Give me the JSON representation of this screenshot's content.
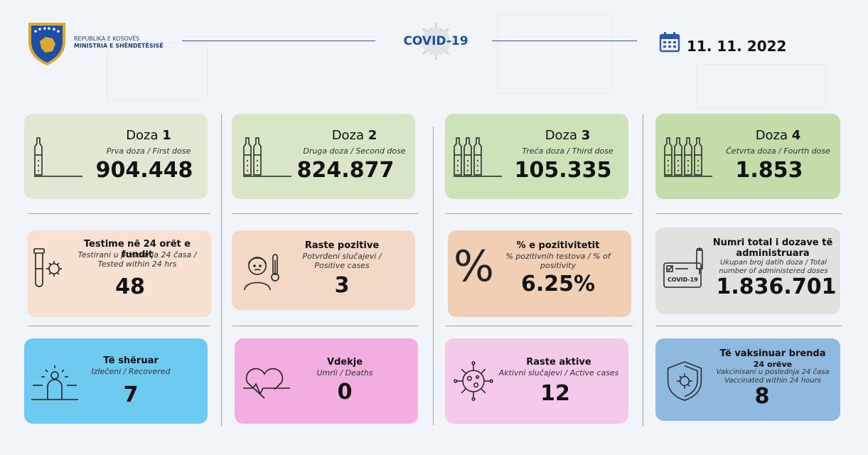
{
  "header": {
    "ministry_line1": "REPUBLIKA E KOSOVËS",
    "ministry_line2": "MINISTRIA E SHËNDETËSISË",
    "covid_title": "COVID-19",
    "date": "11. 11. 2022"
  },
  "doses": [
    {
      "label": "Doza",
      "number": "1",
      "sub": "Prva doza / First dose",
      "value": "904.448",
      "vials": 1,
      "color": "#dfe8d2"
    },
    {
      "label": "Doza",
      "number": "2",
      "sub": "Druga doza / Second dose",
      "value": "824.877",
      "vials": 2,
      "color": "#d6e6c7"
    },
    {
      "label": "Doza",
      "number": "3",
      "sub": "Treća doza / Third dose",
      "value": "105.335",
      "vials": 3,
      "color": "#cde2b8"
    },
    {
      "label": "Doza",
      "number": "4",
      "sub": "Četvrta doza / Fourth dose",
      "value": "1.853",
      "vials": 4,
      "color": "#c3dcaa"
    }
  ],
  "row2": [
    {
      "title": "Testime në 24 orët e fundit",
      "sub": "Testirani u poslednja 24 časa / Tested within 24 hrs",
      "value": "48",
      "color": "#f6e1d2"
    },
    {
      "title": "Raste pozitive",
      "sub": "Potvrđeni slučajevi / Positive cases",
      "value": "3",
      "color": "#f3d9c5"
    },
    {
      "title": "% e pozitivitetit",
      "sub": "% pozitivnih testova / % of positivity",
      "value": "6.25%",
      "color": "#f0cfb4"
    },
    {
      "title": "Numri total i dozave të administruara",
      "sub": "Ukupan broj datih doza / Total number of administered doses",
      "value": "1.836.701",
      "color": "#e3e1df"
    }
  ],
  "row2_icons": {
    "covid_card": "COVID-19",
    "percent": "%"
  },
  "row3": [
    {
      "title": "Të shëruar",
      "sub": "Izlečeni / Recovered",
      "value": "7",
      "color": "#6fcaf2"
    },
    {
      "title": "Vdekje",
      "sub": "Umrli / Deaths",
      "value": "0",
      "color": "#f3aee0"
    },
    {
      "title": "Raste aktive",
      "sub": "Aktivni slučajevi / Active cases",
      "value": "12",
      "color": "#f5c9ea"
    },
    {
      "title": "Të vaksinuar brenda",
      "title2": "24 orëve",
      "sub": "Vakcinisani u poslednja 24 časa Vaccinated within 24 hours",
      "value": "8",
      "color": "#90b9e0"
    }
  ]
}
